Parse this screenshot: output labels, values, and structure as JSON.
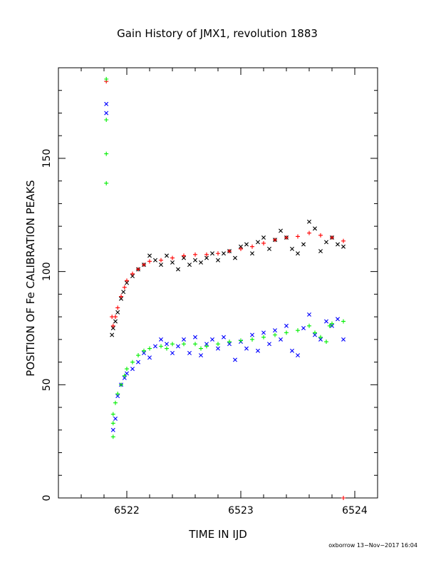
{
  "chart_data": {
    "type": "scatter",
    "title": "Gain History of JMX1, revolution 1883",
    "xlabel": "TIME IN IJD",
    "ylabel": "POSITION OF Fe CALIBRATION PEAKS",
    "xlim": [
      6521.4,
      6524.2
    ],
    "ylim": [
      0,
      190
    ],
    "x_ticks": [
      6522,
      6523,
      6524
    ],
    "y_ticks": [
      0,
      50,
      100,
      150
    ],
    "grid": false,
    "footer": "oxborrow 13−Nov−2017 16:04",
    "colors": {
      "black": "#000000",
      "red": "#ff0000",
      "blue": "#0000ff",
      "green": "#00ee00"
    },
    "series": [
      {
        "color": "#000000",
        "marker": "x",
        "points": [
          [
            6521.87,
            72
          ],
          [
            6521.88,
            75
          ],
          [
            6521.9,
            78
          ],
          [
            6521.92,
            82
          ],
          [
            6521.95,
            88
          ],
          [
            6521.97,
            91
          ],
          [
            6522.0,
            95
          ],
          [
            6522.05,
            98
          ],
          [
            6522.1,
            101
          ],
          [
            6522.15,
            103
          ],
          [
            6522.2,
            107
          ],
          [
            6522.25,
            105
          ],
          [
            6522.3,
            103
          ],
          [
            6522.35,
            107
          ],
          [
            6522.4,
            104
          ],
          [
            6522.45,
            101
          ],
          [
            6522.5,
            106
          ],
          [
            6522.55,
            103
          ],
          [
            6522.6,
            105
          ],
          [
            6522.65,
            104
          ],
          [
            6522.7,
            106
          ],
          [
            6522.75,
            108
          ],
          [
            6522.8,
            105
          ],
          [
            6522.85,
            108
          ],
          [
            6522.9,
            109
          ],
          [
            6522.95,
            106
          ],
          [
            6523.0,
            111
          ],
          [
            6523.05,
            112
          ],
          [
            6523.1,
            108
          ],
          [
            6523.15,
            113
          ],
          [
            6523.2,
            115
          ],
          [
            6523.25,
            110
          ],
          [
            6523.3,
            114
          ],
          [
            6523.35,
            118
          ],
          [
            6523.4,
            115
          ],
          [
            6523.45,
            110
          ],
          [
            6523.5,
            108
          ],
          [
            6523.55,
            112
          ],
          [
            6523.6,
            122
          ],
          [
            6523.65,
            119
          ],
          [
            6523.7,
            109
          ],
          [
            6523.75,
            113
          ],
          [
            6523.8,
            115
          ],
          [
            6523.85,
            112
          ],
          [
            6523.9,
            111
          ]
        ]
      },
      {
        "color": "#ff0000",
        "marker": "+",
        "points": [
          [
            6521.82,
            184
          ],
          [
            6521.87,
            80
          ],
          [
            6521.88,
            76
          ],
          [
            6521.9,
            80
          ],
          [
            6521.92,
            84
          ],
          [
            6521.95,
            89
          ],
          [
            6521.98,
            93
          ],
          [
            6522.0,
            96
          ],
          [
            6522.05,
            99
          ],
          [
            6522.1,
            101
          ],
          [
            6522.15,
            103
          ],
          [
            6522.2,
            104.5
          ],
          [
            6522.3,
            105
          ],
          [
            6522.4,
            106
          ],
          [
            6522.5,
            107
          ],
          [
            6522.6,
            107.5
          ],
          [
            6522.7,
            107.5
          ],
          [
            6522.8,
            108
          ],
          [
            6522.9,
            109
          ],
          [
            6523.0,
            110
          ],
          [
            6523.1,
            111
          ],
          [
            6523.2,
            112.5
          ],
          [
            6523.3,
            114
          ],
          [
            6523.4,
            115
          ],
          [
            6523.5,
            115.5
          ],
          [
            6523.6,
            117
          ],
          [
            6523.7,
            116
          ],
          [
            6523.8,
            115
          ],
          [
            6523.9,
            113.5
          ],
          [
            6523.9,
            0
          ]
        ]
      },
      {
        "color": "#0000ff",
        "marker": "x",
        "points": [
          [
            6521.82,
            174
          ],
          [
            6521.82,
            170
          ],
          [
            6521.88,
            30
          ],
          [
            6521.9,
            35
          ],
          [
            6521.92,
            45
          ],
          [
            6521.95,
            50
          ],
          [
            6521.98,
            53
          ],
          [
            6522.0,
            55
          ],
          [
            6522.05,
            57
          ],
          [
            6522.1,
            60
          ],
          [
            6522.15,
            64
          ],
          [
            6522.2,
            62
          ],
          [
            6522.25,
            67
          ],
          [
            6522.3,
            70
          ],
          [
            6522.35,
            68
          ],
          [
            6522.4,
            64
          ],
          [
            6522.45,
            67
          ],
          [
            6522.5,
            70
          ],
          [
            6522.55,
            64
          ],
          [
            6522.6,
            71
          ],
          [
            6522.65,
            63
          ],
          [
            6522.7,
            68
          ],
          [
            6522.75,
            70
          ],
          [
            6522.8,
            66
          ],
          [
            6522.85,
            71
          ],
          [
            6522.9,
            68
          ],
          [
            6522.95,
            61
          ],
          [
            6523.0,
            69
          ],
          [
            6523.05,
            66
          ],
          [
            6523.1,
            72
          ],
          [
            6523.15,
            65
          ],
          [
            6523.2,
            73
          ],
          [
            6523.25,
            68
          ],
          [
            6523.3,
            74
          ],
          [
            6523.35,
            70
          ],
          [
            6523.4,
            76
          ],
          [
            6523.45,
            65
          ],
          [
            6523.5,
            63
          ],
          [
            6523.55,
            75
          ],
          [
            6523.6,
            81
          ],
          [
            6523.65,
            72
          ],
          [
            6523.7,
            70
          ],
          [
            6523.75,
            78
          ],
          [
            6523.8,
            76
          ],
          [
            6523.85,
            79
          ],
          [
            6523.9,
            70
          ]
        ]
      },
      {
        "color": "#00ee00",
        "marker": "+",
        "points": [
          [
            6521.82,
            185
          ],
          [
            6521.82,
            167
          ],
          [
            6521.82,
            152
          ],
          [
            6521.82,
            139
          ],
          [
            6521.88,
            37
          ],
          [
            6521.88,
            33
          ],
          [
            6521.88,
            27
          ],
          [
            6521.9,
            42
          ],
          [
            6521.92,
            46
          ],
          [
            6521.95,
            50
          ],
          [
            6521.98,
            54
          ],
          [
            6522.0,
            57
          ],
          [
            6522.05,
            60
          ],
          [
            6522.1,
            63
          ],
          [
            6522.15,
            65
          ],
          [
            6522.2,
            66
          ],
          [
            6522.3,
            67
          ],
          [
            6522.35,
            66
          ],
          [
            6522.4,
            68
          ],
          [
            6522.5,
            68
          ],
          [
            6522.6,
            68
          ],
          [
            6522.65,
            66
          ],
          [
            6522.7,
            67
          ],
          [
            6522.8,
            68
          ],
          [
            6522.9,
            69
          ],
          [
            6523.0,
            69.5
          ],
          [
            6523.1,
            70
          ],
          [
            6523.2,
            71
          ],
          [
            6523.3,
            72
          ],
          [
            6523.4,
            73
          ],
          [
            6523.5,
            74
          ],
          [
            6523.6,
            76
          ],
          [
            6523.65,
            73
          ],
          [
            6523.7,
            71
          ],
          [
            6523.75,
            69
          ],
          [
            6523.78,
            76
          ],
          [
            6523.8,
            77
          ],
          [
            6523.9,
            78
          ]
        ]
      }
    ]
  }
}
